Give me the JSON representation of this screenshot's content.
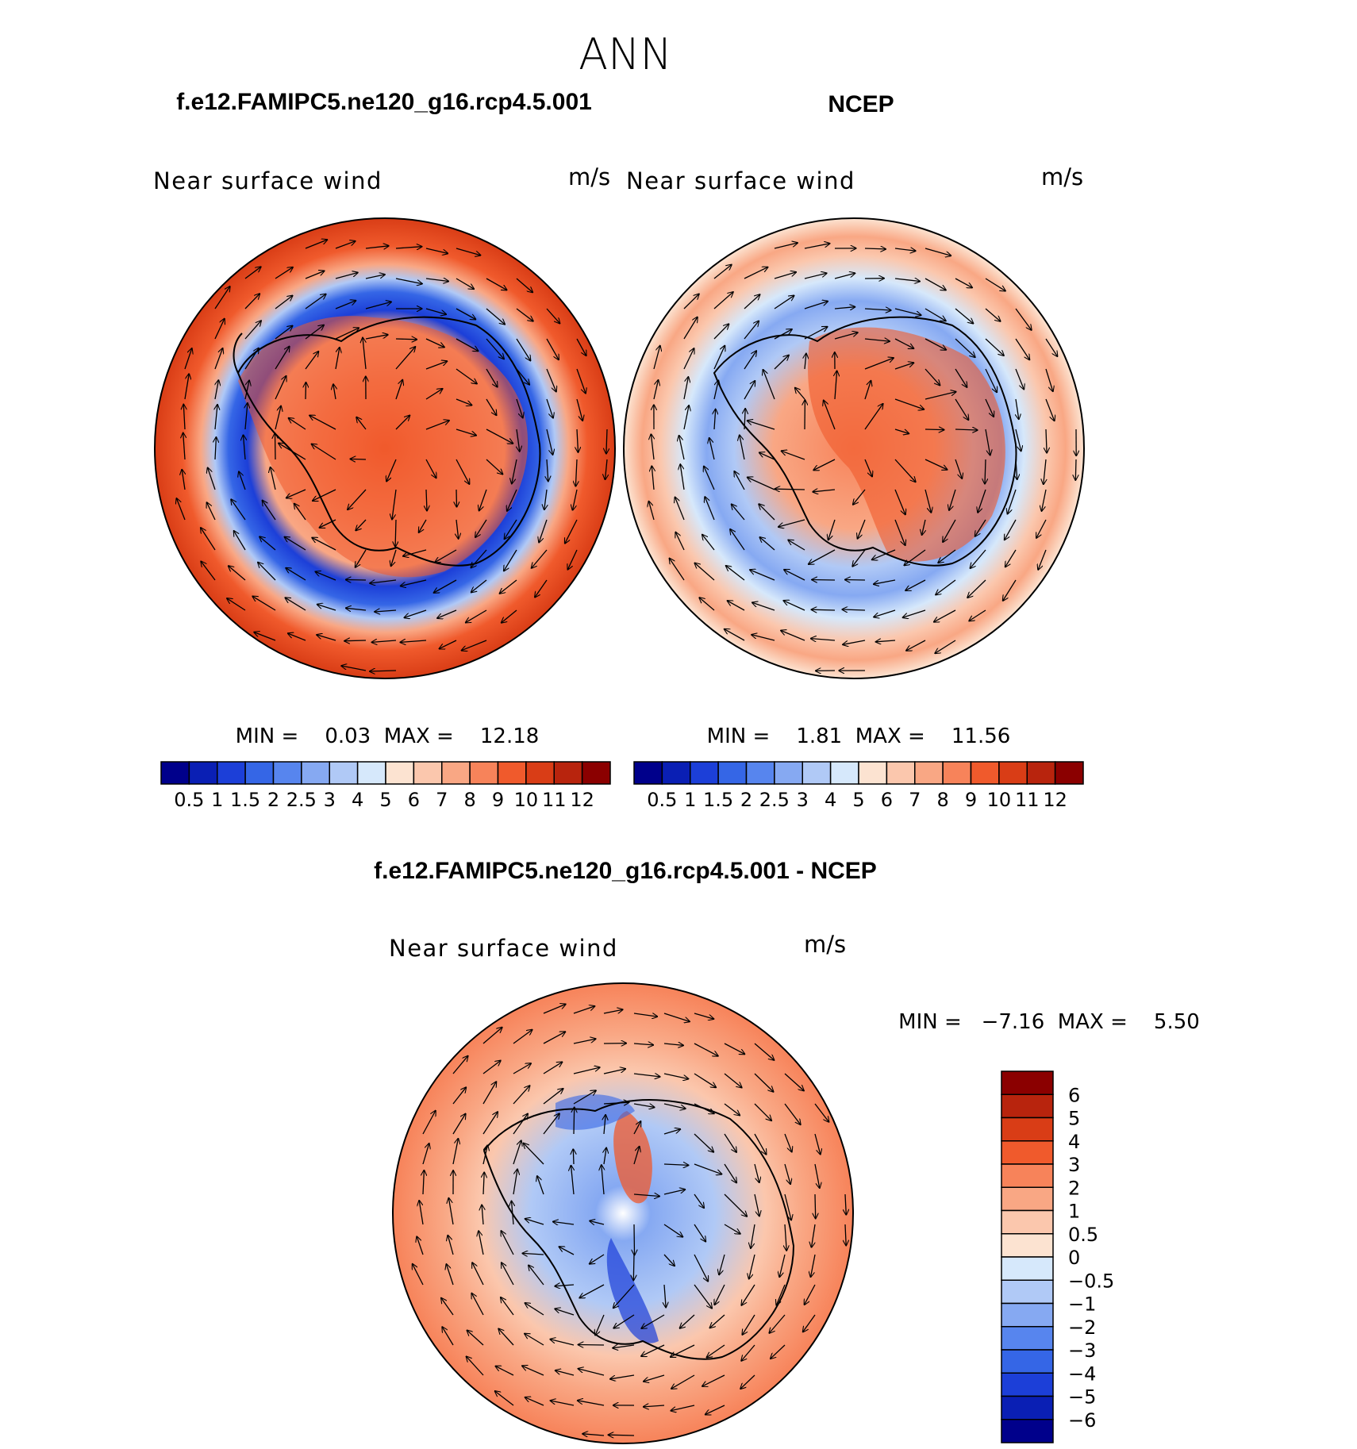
{
  "figure": {
    "season": "ANN",
    "panels": [
      {
        "id": "model",
        "title": "f.e12.FAMIPC5.ne120_g16.rcp4.5.001",
        "left_label": "Near surface wind",
        "units": "m/s",
        "min_max": "MIN =    0.03  MAX =    12.18"
      },
      {
        "id": "obs",
        "title": "NCEP",
        "left_label": "Near surface wind",
        "units": "m/s",
        "min_max": "MIN =    1.81  MAX =    11.56"
      },
      {
        "id": "diff",
        "title": "f.e12.FAMIPC5.ne120_g16.rcp4.5.001 - NCEP",
        "left_label": "Near surface wind",
        "units": "m/s",
        "min_max": "MIN =   −7.16  MAX =    5.50"
      }
    ]
  },
  "chart_data": [
    {
      "type": "heatmap",
      "projection": "south polar stereographic",
      "title": "f.e12.FAMIPC5.ne120_g16.rcp4.5.001",
      "variable": "Near surface wind",
      "units": "m/s",
      "min": 0.03,
      "max": 12.18,
      "colorbar": {
        "tick_labels": [
          "0.5",
          "1",
          "1.5",
          "2",
          "2.5",
          "3",
          "4",
          "5",
          "6",
          "7",
          "8",
          "9",
          "10",
          "11",
          "12"
        ],
        "levels": [
          0.5,
          1,
          1.5,
          2,
          2.5,
          3,
          4,
          5,
          6,
          7,
          8,
          9,
          10,
          11,
          12
        ],
        "colors": [
          "#00008b",
          "#0a1fb4",
          "#1c3fd8",
          "#3566e6",
          "#5785ee",
          "#86a9f2",
          "#b0c9f6",
          "#d6e8fb",
          "#fce3d1",
          "#fbc7ad",
          "#f9a784",
          "#f7835a",
          "#f05a2c",
          "#d93d16",
          "#b8240d",
          "#8b0000"
        ]
      },
      "vectors": true
    },
    {
      "type": "heatmap",
      "projection": "south polar stereographic",
      "title": "NCEP",
      "variable": "Near surface wind",
      "units": "m/s",
      "min": 1.81,
      "max": 11.56,
      "colorbar": {
        "tick_labels": [
          "0.5",
          "1",
          "1.5",
          "2",
          "2.5",
          "3",
          "4",
          "5",
          "6",
          "7",
          "8",
          "9",
          "10",
          "11",
          "12"
        ],
        "levels": [
          0.5,
          1,
          1.5,
          2,
          2.5,
          3,
          4,
          5,
          6,
          7,
          8,
          9,
          10,
          11,
          12
        ],
        "colors": [
          "#00008b",
          "#0a1fb4",
          "#1c3fd8",
          "#3566e6",
          "#5785ee",
          "#86a9f2",
          "#b0c9f6",
          "#d6e8fb",
          "#fce3d1",
          "#fbc7ad",
          "#f9a784",
          "#f7835a",
          "#f05a2c",
          "#d93d16",
          "#b8240d",
          "#8b0000"
        ]
      },
      "vectors": true
    },
    {
      "type": "heatmap",
      "projection": "south polar stereographic",
      "title": "f.e12.FAMIPC5.ne120_g16.rcp4.5.001 - NCEP",
      "variable": "Near surface wind",
      "units": "m/s",
      "min": -7.16,
      "max": 5.5,
      "colorbar": {
        "orientation": "vertical",
        "tick_labels": [
          "6",
          "5",
          "4",
          "3",
          "2",
          "1",
          "0.5",
          "0",
          "−0.5",
          "−1",
          "−2",
          "−3",
          "−4",
          "−5",
          "−6"
        ],
        "levels": [
          6,
          5,
          4,
          3,
          2,
          1,
          0.5,
          0,
          -0.5,
          -1,
          -2,
          -3,
          -4,
          -5,
          -6
        ],
        "colors": [
          "#8b0000",
          "#b8240d",
          "#d93d16",
          "#f05a2c",
          "#f7835a",
          "#f9a784",
          "#fbc7ad",
          "#fce3d1",
          "#d6e8fb",
          "#b0c9f6",
          "#86a9f2",
          "#5785ee",
          "#3566e6",
          "#1c3fd8",
          "#0a1fb4",
          "#00008b"
        ]
      },
      "vectors": true
    }
  ]
}
